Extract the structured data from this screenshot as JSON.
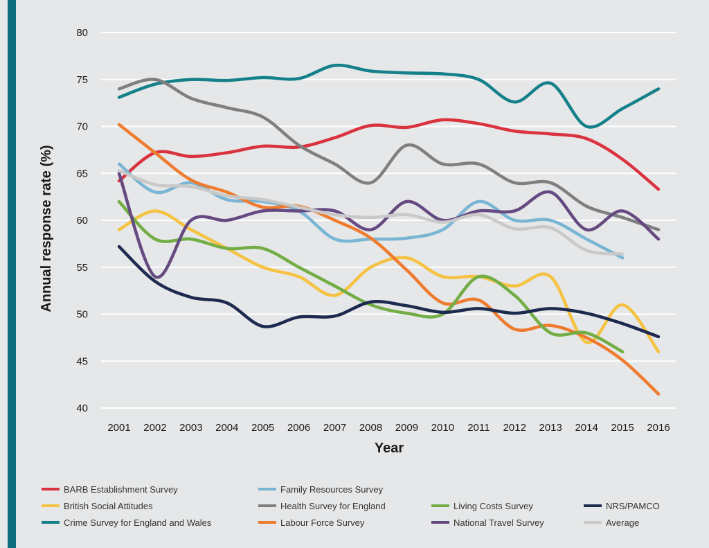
{
  "chart_data": {
    "type": "line",
    "xlabel": "Year",
    "ylabel": "Annual response rate (%)",
    "ylim": [
      40,
      80
    ],
    "yticks": [
      40,
      45,
      50,
      55,
      60,
      65,
      70,
      75,
      80
    ],
    "x": [
      2001,
      2002,
      2003,
      2004,
      2005,
      2006,
      2007,
      2008,
      2009,
      2010,
      2011,
      2012,
      2013,
      2014,
      2015,
      2016
    ],
    "grid": "horizontal",
    "legend_position": "bottom",
    "series": [
      {
        "name": "BARB Establishment Survey",
        "color": "#d9333f",
        "values": [
          64.2,
          67.2,
          66.8,
          67.2,
          67.9,
          67.8,
          68.8,
          70.1,
          69.9,
          70.7,
          70.3,
          69.5,
          69.2,
          68.7,
          66.5,
          63.3
        ]
      },
      {
        "name": "British Social Attitudes",
        "color": "#f5c242",
        "values": [
          59.0,
          61.0,
          59.0,
          57.0,
          55.0,
          54.0,
          52.0,
          55.0,
          56.0,
          54.0,
          54.0,
          53.0,
          54.0,
          47.0,
          51.0,
          46.0
        ]
      },
      {
        "name": "Crime Survey for England and Wales",
        "color": "#13808a",
        "values": [
          73.1,
          74.5,
          75.0,
          74.9,
          75.2,
          75.1,
          76.5,
          75.9,
          75.7,
          75.6,
          75.0,
          72.6,
          74.6,
          70.0,
          71.9,
          74.0
        ]
      },
      {
        "name": "Family Resources Survey",
        "color": "#79b5d4",
        "values": [
          66.0,
          63.0,
          64.0,
          62.2,
          62.0,
          61.0,
          58.0,
          58.0,
          58.1,
          59.0,
          62.0,
          60.0,
          60.0,
          58.0,
          56.0,
          null
        ]
      },
      {
        "name": "Health Survey for England",
        "color": "#7f7f7f",
        "values": [
          74.0,
          75.0,
          73.0,
          72.0,
          71.0,
          68.0,
          66.0,
          64.0,
          68.0,
          66.0,
          66.0,
          64.0,
          64.0,
          61.5,
          60.3,
          59.0
        ]
      },
      {
        "name": "Labour Force Survey",
        "color": "#ee7b2e",
        "values": [
          70.2,
          67.2,
          64.3,
          63.0,
          61.4,
          61.5,
          60.0,
          58.1,
          54.7,
          51.2,
          51.5,
          48.4,
          48.8,
          47.5,
          45.1,
          41.5
        ]
      },
      {
        "name": "Living Costs Survey",
        "color": "#72ad45",
        "values": [
          62.0,
          58.0,
          58.0,
          57.0,
          57.0,
          55.0,
          53.0,
          51.0,
          50.1,
          50.0,
          54.0,
          52.0,
          48.0,
          48.0,
          46.0,
          null
        ]
      },
      {
        "name": "National Travel Survey",
        "color": "#654a82",
        "values": [
          65.0,
          54.0,
          60.0,
          60.0,
          61.0,
          61.0,
          61.0,
          59.0,
          62.0,
          60.0,
          61.0,
          61.0,
          63.0,
          59.0,
          61.0,
          58.0
        ]
      },
      {
        "name": "NRS/PAMCO",
        "color": "#1d2a4f",
        "values": [
          57.2,
          53.5,
          51.8,
          51.2,
          48.7,
          49.7,
          49.8,
          51.3,
          50.9,
          50.2,
          50.6,
          50.1,
          50.6,
          50.1,
          49.0,
          47.6
        ]
      },
      {
        "name": "Average",
        "color": "#c9c9c9",
        "values": [
          65.3,
          63.8,
          63.6,
          62.6,
          62.2,
          61.4,
          60.6,
          60.3,
          60.6,
          59.8,
          60.6,
          59.1,
          59.2,
          56.8,
          56.4,
          null
        ]
      }
    ]
  }
}
